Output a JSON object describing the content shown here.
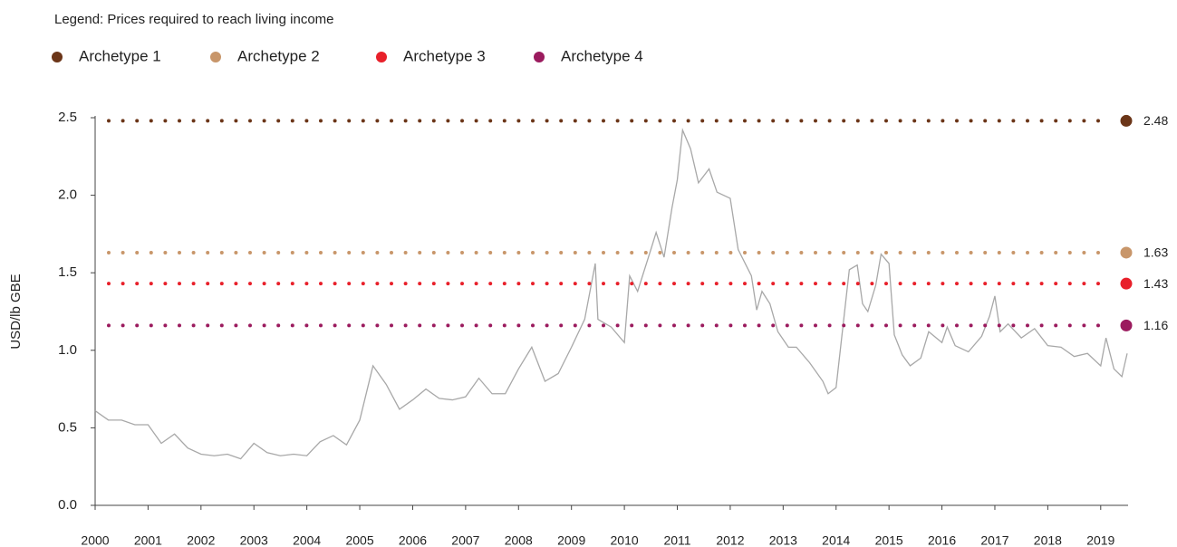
{
  "chart_data": {
    "type": "line",
    "legend_title": "Legend: Prices required to reach living income",
    "ylabel": "USD/lb GBE",
    "xlim": [
      2000,
      2019.5
    ],
    "xticks": [
      2000,
      2001,
      2002,
      2003,
      2004,
      2005,
      2006,
      2007,
      2008,
      2009,
      2010,
      2011,
      2012,
      2013,
      2014,
      2015,
      2016,
      2017,
      2018,
      2019
    ],
    "ylim": [
      0,
      2.5
    ],
    "yticks": [
      {
        "value": 0,
        "label": "0.0"
      },
      0.5,
      {
        "value": 1,
        "label": "1.0"
      },
      1.5,
      {
        "value": 2,
        "label": "2.0"
      },
      2.5
    ],
    "x": [
      2000.0,
      2000.25,
      2000.5,
      2000.75,
      2001.0,
      2001.25,
      2001.5,
      2001.75,
      2002.0,
      2002.25,
      2002.5,
      2002.75,
      2003.0,
      2003.25,
      2003.5,
      2003.75,
      2004.0,
      2004.25,
      2004.5,
      2004.75,
      2005.0,
      2005.25,
      2005.5,
      2005.75,
      2006.0,
      2006.25,
      2006.5,
      2006.75,
      2007.0,
      2007.25,
      2007.5,
      2007.75,
      2008.0,
      2008.25,
      2008.5,
      2008.75,
      2009.0,
      2009.25,
      2009.45,
      2009.5,
      2009.75,
      2010.0,
      2010.1,
      2010.25,
      2010.5,
      2010.6,
      2010.75,
      2010.9,
      2011.0,
      2011.1,
      2011.25,
      2011.4,
      2011.6,
      2011.75,
      2012.0,
      2012.15,
      2012.4,
      2012.5,
      2012.6,
      2012.75,
      2012.9,
      2013.1,
      2013.25,
      2013.5,
      2013.75,
      2013.85,
      2014.0,
      2014.25,
      2014.4,
      2014.5,
      2014.6,
      2014.75,
      2014.85,
      2015.0,
      2015.1,
      2015.25,
      2015.4,
      2015.6,
      2015.75,
      2016.0,
      2016.1,
      2016.25,
      2016.5,
      2016.75,
      2016.9,
      2017.0,
      2017.1,
      2017.25,
      2017.5,
      2017.75,
      2018.0,
      2018.25,
      2018.5,
      2018.75,
      2019.0,
      2019.1,
      2019.25,
      2019.4,
      2019.5
    ],
    "series": [
      {
        "color": "#a8a8a8",
        "values": [
          0.61,
          0.55,
          0.55,
          0.52,
          0.52,
          0.4,
          0.46,
          0.37,
          0.33,
          0.32,
          0.33,
          0.3,
          0.4,
          0.34,
          0.32,
          0.33,
          0.32,
          0.41,
          0.45,
          0.39,
          0.55,
          0.9,
          0.78,
          0.62,
          0.68,
          0.75,
          0.69,
          0.68,
          0.7,
          0.82,
          0.72,
          0.72,
          0.88,
          1.02,
          0.8,
          0.85,
          1.02,
          1.2,
          1.56,
          1.2,
          1.15,
          1.05,
          1.48,
          1.38,
          1.65,
          1.76,
          1.6,
          1.92,
          2.1,
          2.42,
          2.3,
          2.08,
          2.17,
          2.02,
          1.98,
          1.65,
          1.48,
          1.26,
          1.38,
          1.3,
          1.12,
          1.02,
          1.02,
          0.92,
          0.8,
          0.72,
          0.76,
          1.52,
          1.55,
          1.3,
          1.25,
          1.42,
          1.62,
          1.56,
          1.1,
          0.97,
          0.9,
          0.95,
          1.12,
          1.05,
          1.15,
          1.03,
          0.99,
          1.09,
          1.22,
          1.35,
          1.12,
          1.17,
          1.08,
          1.14,
          1.03,
          1.02,
          0.96,
          0.98,
          0.9,
          1.08,
          0.88,
          0.83,
          0.98
        ]
      }
    ],
    "reference_lines": [
      {
        "name": "Archetype 1",
        "color": "#6b3518",
        "value": 2.48
      },
      {
        "name": "Archetype 2",
        "color": "#c8966a",
        "value": 1.63
      },
      {
        "name": "Archetype 3",
        "color": "#e8202a",
        "value": 1.43
      },
      {
        "name": "Archetype 4",
        "color": "#9b1b5e",
        "value": 1.16
      }
    ]
  }
}
